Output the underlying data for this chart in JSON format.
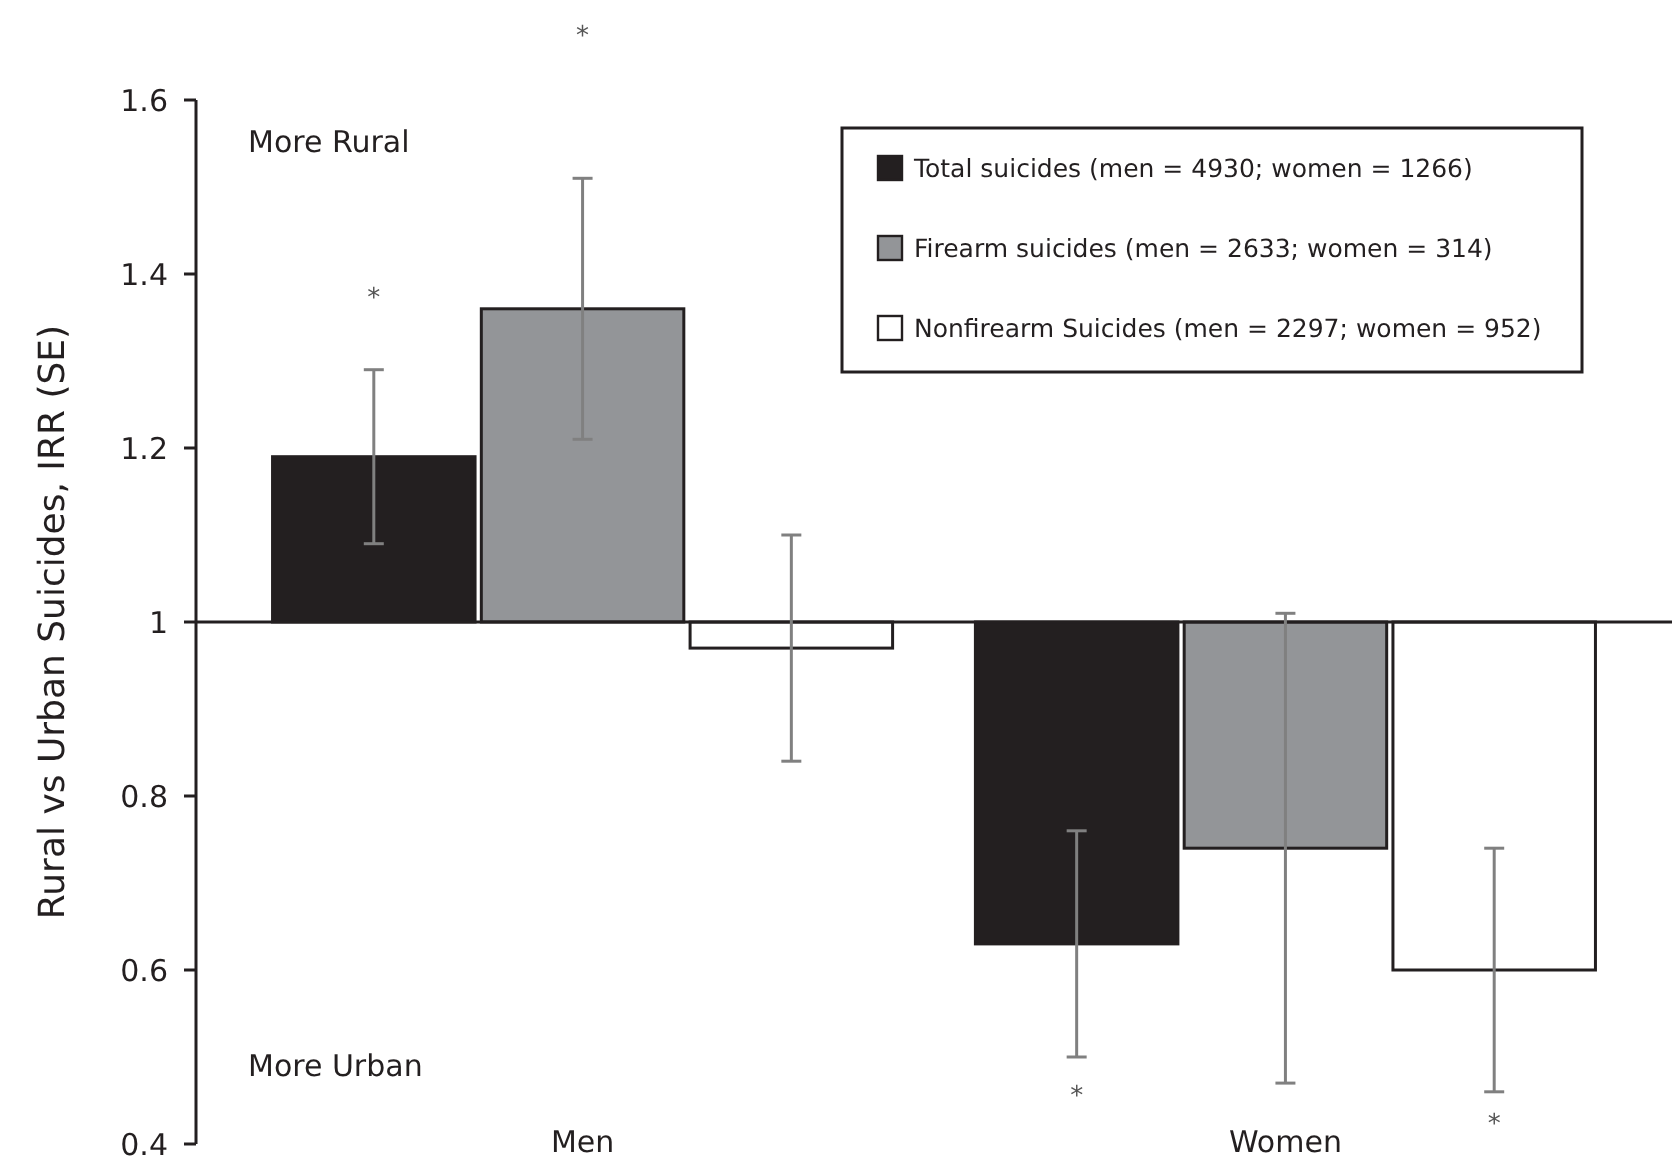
{
  "chart_data": {
    "type": "bar",
    "ylabel": "Rural vs Urban Suicides, IRR (SE)",
    "categories": [
      "Men",
      "Women"
    ],
    "ylim": [
      0.4,
      1.6
    ],
    "yticks": [
      0.4,
      0.6,
      0.8,
      1,
      1.2,
      1.4,
      1.6
    ],
    "legend": "top right",
    "series": [
      {
        "name": "Total suicides (men = 4930; women = 1266)",
        "color": "#231f20",
        "base": [
          1,
          1
        ],
        "values": [
          0.19,
          -0.37
        ],
        "errors": [
          0.1,
          0.13
        ]
      },
      {
        "name": "Firearm suicides (men = 2633; women = 314)",
        "color": "#939598",
        "base": [
          1,
          1
        ],
        "values": [
          0.36,
          -0.26
        ],
        "errors": [
          0.15,
          0.27
        ]
      },
      {
        "name": "Nonfirearm Suicides (men = 2297; women = 952)",
        "color": "#ffffff",
        "base": [
          1,
          1
        ],
        "values": [
          -0.03,
          -0.4
        ],
        "errors": [
          0.13,
          0.14
        ]
      }
    ],
    "annotations": [
      "More Rural",
      "More Urban",
      "*",
      "*",
      "*",
      "*"
    ]
  }
}
